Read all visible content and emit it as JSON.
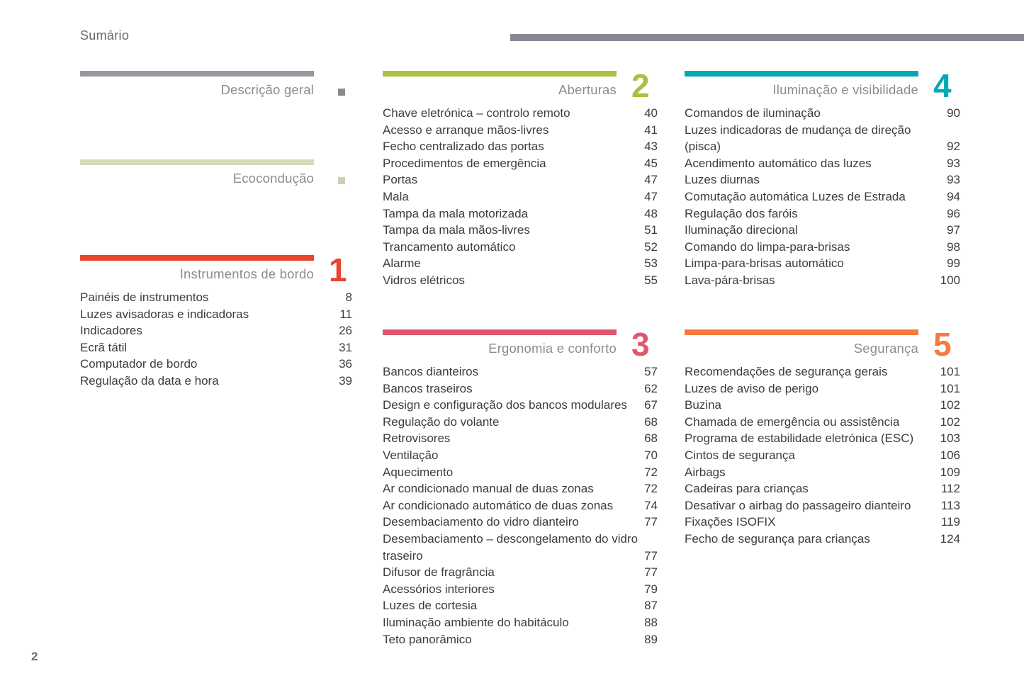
{
  "header": {
    "title": "Sumário"
  },
  "footer": {
    "page_number": "2"
  },
  "colors": {
    "header_rule": "#8c8893",
    "entry_text": "#3d3d3d",
    "section_title_gray": "#8c8c8c"
  },
  "sections": [
    {
      "title": "Descrição geral",
      "number": "",
      "bar_color": "#9b97a0",
      "marker_color": "#8a8790",
      "entries": []
    },
    {
      "title": "Ecocondução",
      "number": "",
      "bar_color": "#d8d9bd",
      "marker_color": "#cfd0b2",
      "entries": []
    },
    {
      "title": "Instrumentos de bordo",
      "number": "1",
      "bar_color": "#e8442e",
      "number_color": "#e8442e",
      "entries": [
        {
          "label": "Painéis de instrumentos",
          "page": "8"
        },
        {
          "label": "Luzes avisadoras e indicadoras",
          "page": "11"
        },
        {
          "label": "Indicadores",
          "page": "26"
        },
        {
          "label": "Ecrã tátil",
          "page": "31"
        },
        {
          "label": "Computador de bordo",
          "page": "36"
        },
        {
          "label": "Regulação da data e hora",
          "page": "39"
        }
      ]
    },
    {
      "title": "Aberturas",
      "number": "2",
      "bar_color": "#a8c13e",
      "number_color": "#a8c13e",
      "entries": [
        {
          "label": "Chave eletrónica – controlo remoto",
          "page": "40"
        },
        {
          "label": "Acesso e arranque mãos-livres",
          "page": "41"
        },
        {
          "label": "Fecho centralizado das portas",
          "page": "43"
        },
        {
          "label": "Procedimentos de emergência",
          "page": "45"
        },
        {
          "label": "Portas",
          "page": "47"
        },
        {
          "label": "Mala",
          "page": "47"
        },
        {
          "label": "Tampa da mala motorizada",
          "page": "48"
        },
        {
          "label": "Tampa da mala mãos-livres",
          "page": "51"
        },
        {
          "label": "Trancamento automático",
          "page": "52"
        },
        {
          "label": "Alarme",
          "page": "53"
        },
        {
          "label": "Vidros elétricos",
          "page": "55"
        }
      ]
    },
    {
      "title": "Ergonomia e conforto",
      "number": "3",
      "bar_color": "#e0566f",
      "number_color": "#e0566f",
      "entries": [
        {
          "label": "Bancos dianteiros",
          "page": "57"
        },
        {
          "label": "Bancos traseiros",
          "page": "62"
        },
        {
          "label": "Design e configuração dos bancos modulares",
          "page": "67"
        },
        {
          "label": "Regulação do volante",
          "page": "68"
        },
        {
          "label": "Retrovisores",
          "page": "68"
        },
        {
          "label": "Ventilação",
          "page": "70"
        },
        {
          "label": "Aquecimento",
          "page": "72"
        },
        {
          "label": "Ar condicionado manual de duas zonas",
          "page": "72"
        },
        {
          "label": "Ar condicionado automático de duas zonas",
          "page": "74"
        },
        {
          "label": "Desembaciamento do vidro dianteiro",
          "page": "77"
        },
        {
          "label": "Desembaciamento – descongelamento do vidro traseiro",
          "page": "77"
        },
        {
          "label": "Difusor de fragrância",
          "page": "77"
        },
        {
          "label": "Acessórios interiores",
          "page": "79"
        },
        {
          "label": "Luzes de cortesia",
          "page": "87"
        },
        {
          "label": "Iluminação ambiente do habitáculo",
          "page": "88"
        },
        {
          "label": "Teto panorâmico",
          "page": "89"
        }
      ]
    },
    {
      "title": "Iluminação e visibilidade",
      "number": "4",
      "bar_color": "#00a9b2",
      "number_color": "#00a9b2",
      "entries": [
        {
          "label": "Comandos de iluminação",
          "page": "90"
        },
        {
          "label": "Luzes indicadoras de mudança de direção (pisca)",
          "page": "92"
        },
        {
          "label": "Acendimento automático das luzes",
          "page": "93"
        },
        {
          "label": "Luzes diurnas",
          "page": "93"
        },
        {
          "label": "Comutação automática Luzes de Estrada",
          "page": "94"
        },
        {
          "label": "Regulação dos faróis",
          "page": "96"
        },
        {
          "label": "Iluminação direcional",
          "page": "97"
        },
        {
          "label": "Comando do limpa-para-brisas",
          "page": "98"
        },
        {
          "label": "Limpa-para-brisas automático",
          "page": "99"
        },
        {
          "label": "Lava-pára-brisas",
          "page": "100"
        }
      ]
    },
    {
      "title": "Segurança",
      "number": "5",
      "bar_color": "#f57a3b",
      "number_color": "#f57a3b",
      "entries": [
        {
          "label": "Recomendações de segurança gerais",
          "page": "101"
        },
        {
          "label": "Luzes de aviso de perigo",
          "page": "101"
        },
        {
          "label": "Buzina",
          "page": "102"
        },
        {
          "label": "Chamada de emergência ou assistência",
          "page": "102"
        },
        {
          "label": "Programa de estabilidade eletrónica (ESC)",
          "page": "103"
        },
        {
          "label": "Cintos de segurança",
          "page": "106"
        },
        {
          "label": "Airbags",
          "page": "109"
        },
        {
          "label": "Cadeiras para crianças",
          "page": "112"
        },
        {
          "label": "Desativar o airbag do passageiro dianteiro",
          "page": "113"
        },
        {
          "label": "Fixações ISOFIX",
          "page": "119"
        },
        {
          "label": "Fecho de segurança para crianças",
          "page": "124"
        }
      ]
    }
  ]
}
